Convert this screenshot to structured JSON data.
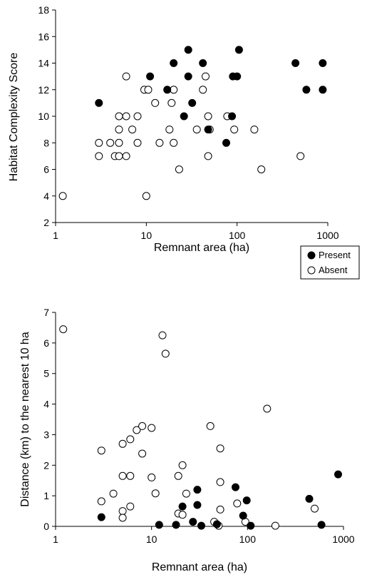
{
  "legend": {
    "present_label": "Present",
    "absent_label": "Absent"
  },
  "colors": {
    "present": "#000000",
    "absent": "#ffffff",
    "axis": "#000000"
  },
  "chart_data": [
    {
      "type": "scatter",
      "title": "",
      "xlabel": "Remnant area (ha)",
      "ylabel": "Habitat Complexity Score",
      "x_scale": "log",
      "xlim": [
        1,
        1000
      ],
      "ylim": [
        2,
        18
      ],
      "xticks": [
        1,
        10,
        100,
        1000
      ],
      "xtick_labels": [
        "1",
        "10",
        "100",
        "1000"
      ],
      "yticks": [
        2,
        4,
        6,
        8,
        10,
        12,
        14,
        16,
        18
      ],
      "ytick_labels": [
        "2",
        "4",
        "6",
        "8",
        "10",
        "12",
        "14",
        "16",
        "18"
      ],
      "grid": false,
      "legend_position": "below-right",
      "series": [
        {
          "name": "Present",
          "marker": "filled-circle",
          "points": [
            [
              3,
              11
            ],
            [
              11,
              13
            ],
            [
              17,
              12
            ],
            [
              20,
              14
            ],
            [
              26,
              10
            ],
            [
              29,
              15
            ],
            [
              29,
              13
            ],
            [
              32,
              11
            ],
            [
              42,
              14
            ],
            [
              48,
              9
            ],
            [
              76,
              8
            ],
            [
              88,
              10
            ],
            [
              90,
              13
            ],
            [
              100,
              13
            ],
            [
              105,
              15
            ],
            [
              440,
              14
            ],
            [
              580,
              12
            ],
            [
              880,
              14
            ],
            [
              880,
              12
            ]
          ]
        },
        {
          "name": "Absent",
          "marker": "open-circle",
          "points": [
            [
              1.2,
              4
            ],
            [
              3,
              8
            ],
            [
              3,
              7
            ],
            [
              4,
              8
            ],
            [
              4.5,
              7
            ],
            [
              5,
              10
            ],
            [
              5,
              9
            ],
            [
              5,
              8
            ],
            [
              5,
              7
            ],
            [
              6,
              13
            ],
            [
              6,
              10
            ],
            [
              6,
              7
            ],
            [
              7,
              9
            ],
            [
              8,
              10
            ],
            [
              8,
              8
            ],
            [
              9.5,
              12
            ],
            [
              10,
              4
            ],
            [
              10.5,
              12
            ],
            [
              12.5,
              11
            ],
            [
              14,
              8
            ],
            [
              18,
              9
            ],
            [
              19,
              11
            ],
            [
              20,
              12
            ],
            [
              20,
              8
            ],
            [
              23,
              6
            ],
            [
              36,
              9
            ],
            [
              42,
              12
            ],
            [
              45,
              13
            ],
            [
              48,
              10
            ],
            [
              48,
              7
            ],
            [
              50,
              9
            ],
            [
              78,
              10
            ],
            [
              93,
              9
            ],
            [
              155,
              9
            ],
            [
              185,
              6
            ],
            [
              500,
              7
            ]
          ]
        }
      ]
    },
    {
      "type": "scatter",
      "title": "",
      "xlabel": "Remnant area (ha)",
      "ylabel": "Distance (km) to the nearest 10 ha",
      "x_scale": "log",
      "xlim": [
        1,
        1000
      ],
      "ylim": [
        0,
        7
      ],
      "xticks": [
        1,
        10,
        100,
        1000
      ],
      "xtick_labels": [
        "1",
        "10",
        "100",
        "1000"
      ],
      "yticks": [
        0,
        1,
        2,
        3,
        4,
        5,
        6,
        7
      ],
      "ytick_labels": [
        "0",
        "1",
        "2",
        "3",
        "4",
        "5",
        "6",
        "7"
      ],
      "grid": false,
      "series": [
        {
          "name": "Present",
          "marker": "filled-circle",
          "points": [
            [
              3,
              0.3
            ],
            [
              12,
              0.05
            ],
            [
              18,
              0.05
            ],
            [
              21,
              0.65
            ],
            [
              27,
              0.15
            ],
            [
              30,
              1.2
            ],
            [
              30,
              0.7
            ],
            [
              33,
              0.02
            ],
            [
              48,
              0.07
            ],
            [
              75,
              1.28
            ],
            [
              90,
              0.35
            ],
            [
              98,
              0.85
            ],
            [
              108,
              0.02
            ],
            [
              440,
              0.9
            ],
            [
              590,
              0.05
            ],
            [
              880,
              1.7
            ]
          ]
        },
        {
          "name": "Absent",
          "marker": "open-circle",
          "points": [
            [
              1.2,
              6.45
            ],
            [
              3,
              2.48
            ],
            [
              3,
              0.82
            ],
            [
              4,
              1.07
            ],
            [
              5,
              2.7
            ],
            [
              5,
              1.65
            ],
            [
              5,
              0.5
            ],
            [
              5,
              0.28
            ],
            [
              6,
              2.85
            ],
            [
              6,
              1.65
            ],
            [
              6,
              0.65
            ],
            [
              7,
              3.15
            ],
            [
              8,
              3.28
            ],
            [
              8,
              2.38
            ],
            [
              10,
              3.22
            ],
            [
              10,
              1.6
            ],
            [
              11,
              1.08
            ],
            [
              13,
              6.25
            ],
            [
              14,
              5.65
            ],
            [
              19,
              1.65
            ],
            [
              19,
              0.42
            ],
            [
              21,
              2.0
            ],
            [
              21,
              0.38
            ],
            [
              23,
              1.07
            ],
            [
              41,
              3.28
            ],
            [
              45,
              0.15
            ],
            [
              50,
              0.02
            ],
            [
              52,
              2.55
            ],
            [
              52,
              1.45
            ],
            [
              52,
              0.55
            ],
            [
              78,
              0.75
            ],
            [
              95,
              0.15
            ],
            [
              160,
              3.85
            ],
            [
              195,
              0.02
            ],
            [
              500,
              0.58
            ]
          ]
        }
      ]
    }
  ]
}
